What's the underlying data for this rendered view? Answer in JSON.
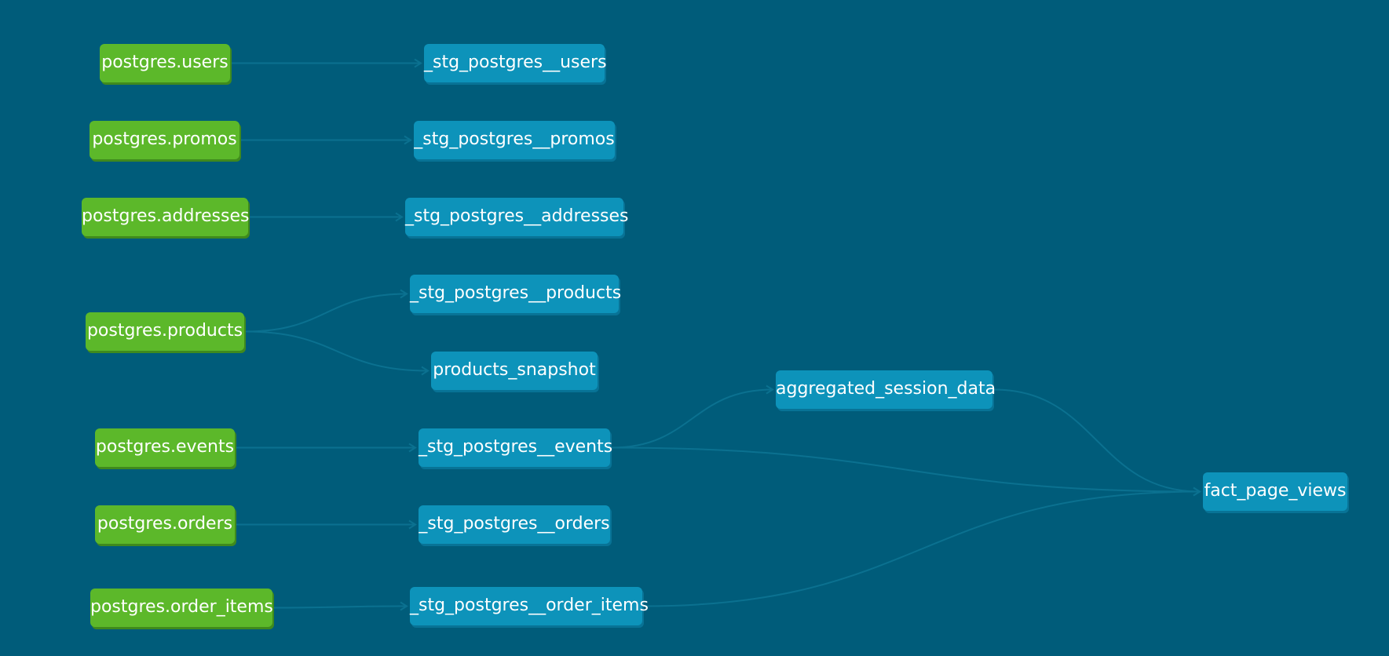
{
  "colors": {
    "background": "#005c7a",
    "source_node": "#5cb82a",
    "model_node": "#0d93ba",
    "edge": "#0b7190"
  },
  "nodes": {
    "src_users": "postgres.users",
    "src_promos": "postgres.promos",
    "src_addresses": "postgres.addresses",
    "src_products": "postgres.products",
    "src_events": "postgres.events",
    "src_orders": "postgres.orders",
    "src_order_items": "postgres.order_items",
    "stg_users": "_stg_postgres__users",
    "stg_promos": "_stg_postgres__promos",
    "stg_addresses": "_stg_postgres__addresses",
    "stg_products": "_stg_postgres__products",
    "products_snapshot": "products_snapshot",
    "stg_events": "_stg_postgres__events",
    "stg_orders": "_stg_postgres__orders",
    "stg_order_items": "_stg_postgres__order_items",
    "aggregated_session_data": "aggregated_session_data",
    "fact_page_views": "fact_page_views"
  },
  "edges": [
    [
      "src_users",
      "stg_users"
    ],
    [
      "src_promos",
      "stg_promos"
    ],
    [
      "src_addresses",
      "stg_addresses"
    ],
    [
      "src_products",
      "stg_products"
    ],
    [
      "src_products",
      "products_snapshot"
    ],
    [
      "src_events",
      "stg_events"
    ],
    [
      "src_orders",
      "stg_orders"
    ],
    [
      "src_order_items",
      "stg_order_items"
    ],
    [
      "stg_events",
      "aggregated_session_data"
    ],
    [
      "aggregated_session_data",
      "fact_page_views"
    ],
    [
      "stg_events",
      "fact_page_views"
    ],
    [
      "stg_order_items",
      "fact_page_views"
    ]
  ]
}
